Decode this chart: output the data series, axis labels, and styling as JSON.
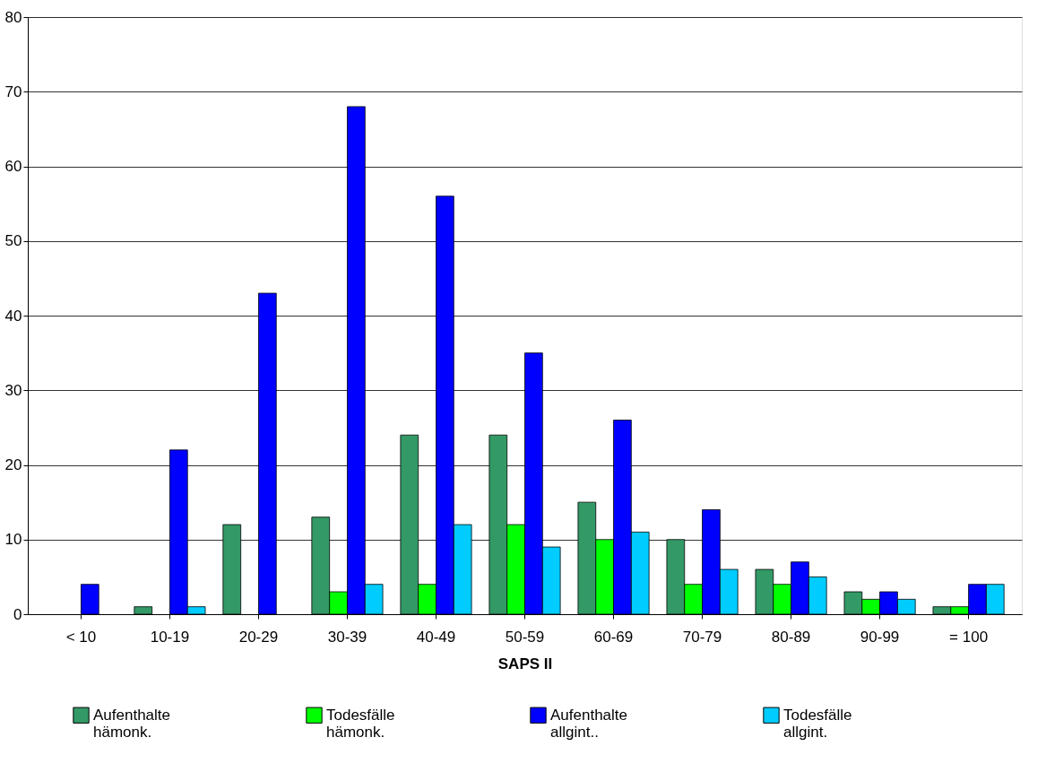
{
  "chart_data": {
    "type": "bar",
    "xlabel": "SAPS II",
    "categories": [
      "< 10",
      "10-19",
      "20-29",
      "30-39",
      "40-49",
      "50-59",
      "60-69",
      "70-79",
      "80-89",
      "90-99",
      "= 100"
    ],
    "series": [
      {
        "name": "Aufenthalte hämonk.",
        "color": "#339966",
        "values": [
          null,
          1,
          12,
          13,
          24,
          24,
          15,
          10,
          6,
          3,
          1
        ]
      },
      {
        "name": "Todesfälle hämonk.",
        "color": "#00ff00",
        "values": [
          null,
          null,
          null,
          3,
          4,
          12,
          10,
          4,
          4,
          2,
          1
        ]
      },
      {
        "name": "Aufenthalte allgint..",
        "color": "#0000ff",
        "values": [
          4,
          22,
          43,
          68,
          56,
          35,
          26,
          14,
          7,
          3,
          4
        ]
      },
      {
        "name": "Todesfälle allgint.",
        "color": "#00ccff",
        "values": [
          null,
          1,
          null,
          4,
          12,
          9,
          11,
          6,
          5,
          2,
          4
        ]
      }
    ],
    "ylim": [
      0,
      80
    ],
    "yticks": [
      0,
      10,
      20,
      30,
      40,
      50,
      60,
      70,
      80
    ],
    "grid": "y",
    "legend": "bottom"
  }
}
